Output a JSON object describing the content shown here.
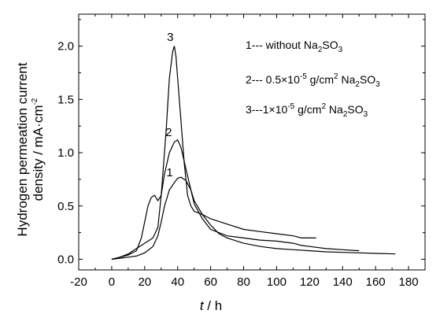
{
  "chart_data": {
    "type": "line",
    "xlabel_var": "t",
    "xlabel_unit": " / h",
    "ylabel_line1": "Hydrogen permeation current",
    "ylabel_line2": "density / mA·cm",
    "ylabel_exp": "-2",
    "xlim": [
      -20,
      190
    ],
    "ylim": [
      -0.1,
      2.3
    ],
    "x_ticks": [
      "-20",
      "0",
      "20",
      "40",
      "60",
      "80",
      "100",
      "120",
      "140",
      "160",
      "180"
    ],
    "y_ticks": [
      "0.0",
      "0.5",
      "1.0",
      "1.5",
      "2.0"
    ],
    "series": [
      {
        "name": "1",
        "label": "1",
        "x": [
          0,
          5,
          10,
          15,
          20,
          25,
          28,
          30,
          32,
          35,
          38,
          40,
          42,
          45,
          48,
          50,
          55,
          60,
          65,
          70,
          80,
          90,
          100,
          110,
          120,
          130,
          140,
          150,
          160,
          172
        ],
        "y": [
          0.0,
          0.01,
          0.02,
          0.03,
          0.06,
          0.12,
          0.22,
          0.35,
          0.5,
          0.65,
          0.72,
          0.76,
          0.77,
          0.74,
          0.65,
          0.55,
          0.42,
          0.32,
          0.24,
          0.2,
          0.15,
          0.12,
          0.1,
          0.09,
          0.08,
          0.07,
          0.065,
          0.06,
          0.055,
          0.05
        ]
      },
      {
        "name": "2",
        "label": "2",
        "x": [
          0,
          5,
          10,
          15,
          18,
          20,
          22,
          24,
          26,
          28,
          30,
          32,
          35,
          38,
          40,
          42,
          45,
          48,
          50,
          55,
          60,
          70,
          80,
          90,
          100,
          110,
          115,
          120,
          130,
          140,
          150
        ],
        "y": [
          0.0,
          0.02,
          0.04,
          0.08,
          0.2,
          0.35,
          0.5,
          0.58,
          0.6,
          0.55,
          0.6,
          0.8,
          1.0,
          1.1,
          1.12,
          1.05,
          0.85,
          0.65,
          0.52,
          0.38,
          0.28,
          0.22,
          0.2,
          0.18,
          0.17,
          0.15,
          0.13,
          0.12,
          0.1,
          0.09,
          0.08
        ]
      },
      {
        "name": "3",
        "label": "3",
        "x": [
          0,
          5,
          10,
          15,
          20,
          25,
          28,
          30,
          33,
          35,
          37,
          38,
          39,
          40,
          42,
          44,
          46,
          48,
          50,
          55,
          60,
          70,
          80,
          90,
          100,
          110,
          115,
          120,
          124
        ],
        "y": [
          0.0,
          0.02,
          0.05,
          0.1,
          0.15,
          0.2,
          0.3,
          0.6,
          1.2,
          1.7,
          1.95,
          2.0,
          1.9,
          1.7,
          1.3,
          0.9,
          0.6,
          0.5,
          0.45,
          0.42,
          0.38,
          0.33,
          0.28,
          0.26,
          0.24,
          0.22,
          0.2,
          0.2,
          0.2
        ]
      }
    ],
    "legend": [
      {
        "prefix": "1--- without Na",
        "sub1": "2",
        "mid": "SO",
        "sub2": "3",
        "suffix": ""
      },
      {
        "prefix": "2--- 0.5×10",
        "sup": "-5",
        "mid2": " g/cm",
        "sup2": "2",
        "mid": " Na",
        "sub1": "2",
        "mid3": "SO",
        "sub2": "3"
      },
      {
        "prefix": "3---1×10",
        "sup": "-5",
        "mid2": " g/cm",
        "sup2": "2",
        "mid": " Na",
        "sub1": "2",
        "mid3": "SO",
        "sub2": "3"
      }
    ]
  }
}
